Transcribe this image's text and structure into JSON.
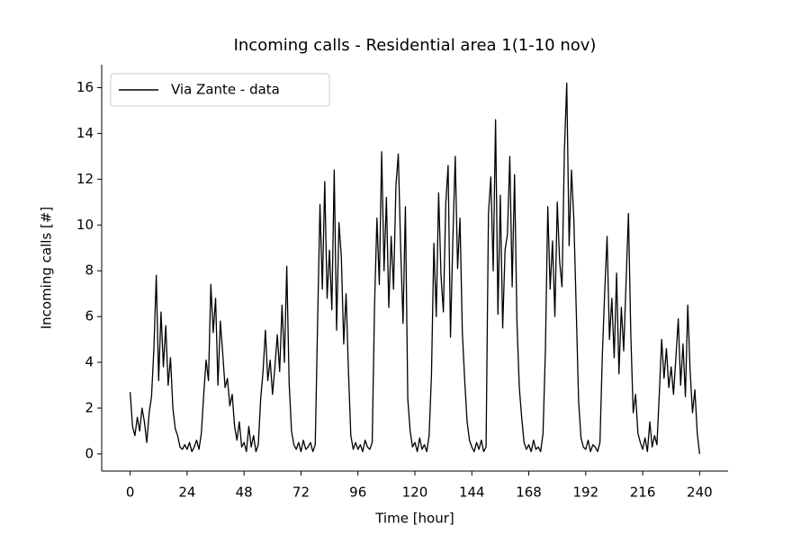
{
  "chart_data": {
    "type": "line",
    "title": "Incoming calls - Residential area 1(1-10 nov)",
    "x_label": "Time [hour]",
    "y_label": "Incoming calls [#]",
    "x": [
      0,
      1,
      2,
      3,
      4,
      5,
      6,
      7,
      8,
      9,
      10,
      11,
      12,
      13,
      14,
      15,
      16,
      17,
      18,
      19,
      20,
      21,
      22,
      23,
      24,
      25,
      26,
      27,
      28,
      29,
      30,
      31,
      32,
      33,
      34,
      35,
      36,
      37,
      38,
      39,
      40,
      41,
      42,
      43,
      44,
      45,
      46,
      47,
      48,
      49,
      50,
      51,
      52,
      53,
      54,
      55,
      56,
      57,
      58,
      59,
      60,
      61,
      62,
      63,
      64,
      65,
      66,
      67,
      68,
      69,
      70,
      71,
      72,
      73,
      74,
      75,
      76,
      77,
      78,
      79,
      80,
      81,
      82,
      83,
      84,
      85,
      86,
      87,
      88,
      89,
      90,
      91,
      92,
      93,
      94,
      95,
      96,
      97,
      98,
      99,
      100,
      101,
      102,
      103,
      104,
      105,
      106,
      107,
      108,
      109,
      110,
      111,
      112,
      113,
      114,
      115,
      116,
      117,
      118,
      119,
      120,
      121,
      122,
      123,
      124,
      125,
      126,
      127,
      128,
      129,
      130,
      131,
      132,
      133,
      134,
      135,
      136,
      137,
      138,
      139,
      140,
      141,
      142,
      143,
      144,
      145,
      146,
      147,
      148,
      149,
      150,
      151,
      152,
      153,
      154,
      155,
      156,
      157,
      158,
      159,
      160,
      161,
      162,
      163,
      164,
      165,
      166,
      167,
      168,
      169,
      170,
      171,
      172,
      173,
      174,
      175,
      176,
      177,
      178,
      179,
      180,
      181,
      182,
      183,
      184,
      185,
      186,
      187,
      188,
      189,
      190,
      191,
      192,
      193,
      194,
      195,
      196,
      197,
      198,
      199,
      200,
      201,
      202,
      203,
      204,
      205,
      206,
      207,
      208,
      209,
      210,
      211,
      212,
      213,
      214,
      215,
      216,
      217,
      218,
      219,
      220,
      221,
      222,
      223,
      224,
      225,
      226,
      227,
      228,
      229,
      230,
      231,
      232,
      233,
      234,
      235,
      236,
      237,
      238,
      239,
      240
    ],
    "series": [
      {
        "name": "Via Zante - data",
        "color": "#000000",
        "values": [
          2.7,
          1.2,
          0.8,
          1.6,
          1.0,
          2.0,
          1.4,
          0.5,
          1.8,
          2.5,
          4.6,
          7.8,
          3.2,
          6.2,
          3.8,
          5.6,
          3.0,
          4.2,
          2.0,
          1.1,
          0.8,
          0.3,
          0.2,
          0.4,
          0.2,
          0.5,
          0.1,
          0.3,
          0.6,
          0.2,
          0.9,
          2.6,
          4.1,
          3.2,
          7.4,
          5.3,
          6.8,
          3.0,
          5.8,
          4.4,
          2.9,
          3.3,
          2.1,
          2.6,
          1.2,
          0.6,
          1.4,
          0.3,
          0.5,
          0.1,
          1.2,
          0.3,
          0.8,
          0.1,
          0.4,
          2.4,
          3.6,
          5.4,
          3.2,
          4.1,
          2.6,
          3.8,
          5.2,
          3.6,
          6.5,
          4.0,
          8.2,
          3.1,
          1.0,
          0.4,
          0.2,
          0.5,
          0.1,
          0.6,
          0.2,
          0.3,
          0.5,
          0.1,
          0.4,
          5.8,
          10.9,
          7.2,
          11.9,
          6.8,
          8.9,
          6.3,
          12.4,
          5.4,
          10.1,
          8.6,
          4.8,
          7.0,
          3.6,
          0.8,
          0.2,
          0.5,
          0.2,
          0.4,
          0.1,
          0.6,
          0.3,
          0.2,
          0.5,
          6.5,
          10.3,
          7.4,
          13.2,
          8.0,
          11.2,
          6.4,
          9.5,
          7.2,
          11.7,
          13.1,
          9.0,
          5.7,
          10.8,
          2.4,
          1.0,
          0.3,
          0.5,
          0.1,
          0.7,
          0.2,
          0.4,
          0.1,
          0.8,
          3.5,
          9.2,
          6.0,
          11.4,
          7.8,
          6.2,
          10.9,
          12.6,
          5.1,
          9.4,
          13.0,
          8.1,
          10.3,
          5.3,
          3.2,
          1.4,
          0.6,
          0.3,
          0.1,
          0.5,
          0.2,
          0.6,
          0.1,
          0.3,
          10.5,
          12.1,
          8.0,
          14.6,
          6.1,
          11.3,
          5.5,
          8.9,
          9.6,
          13.0,
          7.3,
          12.2,
          5.8,
          2.9,
          1.6,
          0.5,
          0.2,
          0.4,
          0.1,
          0.6,
          0.2,
          0.3,
          0.1,
          0.9,
          4.5,
          10.8,
          7.2,
          9.3,
          6.0,
          11.0,
          8.4,
          7.3,
          13.2,
          16.2,
          9.1,
          12.4,
          10.2,
          6.3,
          2.3,
          0.7,
          0.3,
          0.2,
          0.6,
          0.1,
          0.4,
          0.3,
          0.1,
          0.5,
          4.3,
          7.1,
          9.5,
          5.0,
          6.8,
          4.2,
          7.9,
          3.5,
          6.4,
          4.5,
          7.5,
          10.5,
          5.2,
          1.8,
          2.6,
          0.9,
          0.5,
          0.2,
          0.7,
          0.1,
          1.4,
          0.3,
          0.8,
          0.4,
          2.6,
          5.0,
          3.3,
          4.6,
          2.9,
          3.8,
          2.6,
          4.2,
          5.9,
          3.0,
          4.8,
          2.5,
          6.5,
          3.6,
          1.8,
          2.8,
          0.9,
          0.0
        ]
      }
    ],
    "xlim": [
      -12,
      252
    ],
    "ylim": [
      -0.75,
      17
    ],
    "xticks": [
      0,
      24,
      48,
      72,
      96,
      120,
      144,
      168,
      192,
      216,
      240
    ],
    "yticks": [
      0,
      2,
      4,
      6,
      8,
      10,
      12,
      14,
      16
    ],
    "grid": false,
    "legend": "upper-left"
  }
}
